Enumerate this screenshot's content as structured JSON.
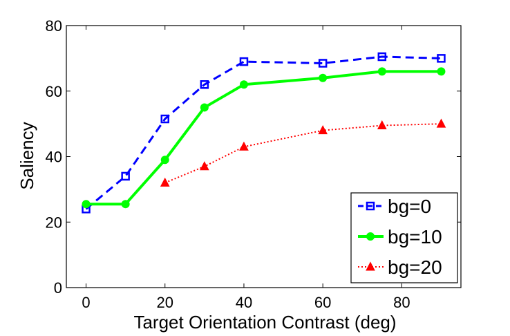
{
  "chart_data": {
    "type": "line",
    "title": "",
    "xlabel": "Target Orientation Contrast (deg)",
    "ylabel": "Saliency",
    "xlim": [
      -5,
      95
    ],
    "ylim": [
      0,
      80
    ],
    "xticks": [
      0,
      20,
      40,
      60,
      80
    ],
    "yticks": [
      0,
      20,
      40,
      60,
      80
    ],
    "xtick_labels": [
      "0",
      "20",
      "40",
      "60",
      "80"
    ],
    "ytick_labels": [
      "0",
      "20",
      "40",
      "60",
      "80"
    ],
    "grid": false,
    "legend_position": "bottom-right",
    "series": [
      {
        "name": "bg=0",
        "color": "#0000ff",
        "line_style": "dashed",
        "marker": "square",
        "x": [
          0,
          10,
          20,
          30,
          40,
          60,
          75,
          90
        ],
        "y": [
          24,
          34,
          51.5,
          62,
          69,
          68.5,
          70.5,
          70
        ]
      },
      {
        "name": "bg=10",
        "color": "#00ff00",
        "line_style": "solid",
        "marker": "circle",
        "x": [
          0,
          10,
          20,
          30,
          40,
          60,
          75,
          90
        ],
        "y": [
          25.5,
          25.5,
          39,
          55,
          62,
          64,
          66,
          66
        ]
      },
      {
        "name": "bg=20",
        "color": "#ff0000",
        "line_style": "dotted",
        "marker": "triangle",
        "x": [
          20,
          30,
          40,
          60,
          75,
          90
        ],
        "y": [
          32,
          37,
          43,
          48,
          49.5,
          50
        ]
      }
    ]
  }
}
